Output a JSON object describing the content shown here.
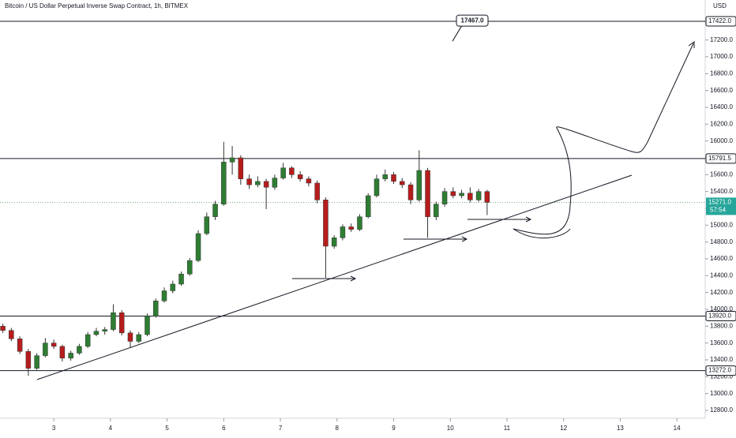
{
  "chart_data": {
    "type": "candlestick",
    "title": "Bitcoin / US Dollar Perpetual Inverse Swap Contract, 1h, BITMEX",
    "currency": "USD",
    "x": [
      2.1,
      2.25,
      2.4,
      2.55,
      2.7,
      2.85,
      3.0,
      3.15,
      3.3,
      3.45,
      3.6,
      3.75,
      3.9,
      4.05,
      4.2,
      4.35,
      4.5,
      4.65,
      4.8,
      4.95,
      5.1,
      5.25,
      5.4,
      5.55,
      5.7,
      5.85,
      6.0,
      6.15,
      6.3,
      6.45,
      6.6,
      6.75,
      6.9,
      7.05,
      7.2,
      7.35,
      7.5,
      7.65,
      7.8,
      7.95,
      8.1,
      8.25,
      8.4,
      8.55,
      8.7,
      8.85,
      9.0,
      9.15,
      9.3,
      9.45,
      9.6,
      9.75,
      9.9,
      10.05,
      10.2,
      10.35,
      10.5,
      10.65
    ],
    "open": [
      13800,
      13750,
      13650,
      13500,
      13300,
      13450,
      13600,
      13560,
      13420,
      13480,
      13560,
      13700,
      13740,
      13760,
      13960,
      13720,
      13620,
      13700,
      13920,
      14100,
      14220,
      14300,
      14420,
      14580,
      14900,
      15100,
      15250,
      15750,
      15800,
      15550,
      15480,
      15520,
      15450,
      15560,
      15680,
      15600,
      15550,
      15500,
      15300,
      14750,
      14850,
      14980,
      14950,
      15100,
      15350,
      15550,
      15600,
      15520,
      15480,
      15300,
      15650,
      15100,
      15250,
      15400,
      15350,
      15380,
      15300,
      15400
    ],
    "high": [
      13830,
      13780,
      13680,
      13530,
      13480,
      13660,
      13640,
      13580,
      13510,
      13590,
      13730,
      13780,
      13790,
      14060,
      13990,
      13750,
      13730,
      13950,
      14130,
      14260,
      14340,
      14450,
      14610,
      14940,
      15150,
      15290,
      15990,
      15940,
      15830,
      15600,
      15580,
      15550,
      15600,
      15740,
      15700,
      15640,
      15580,
      15530,
      15330,
      14880,
      15010,
      15020,
      15130,
      15380,
      15600,
      15660,
      15630,
      15560,
      15510,
      15890,
      15680,
      15280,
      15440,
      15450,
      15420,
      15450,
      15430,
      15420
    ],
    "low": [
      13720,
      13620,
      13470,
      13210,
      13280,
      13430,
      13530,
      13380,
      13390,
      13460,
      13540,
      13680,
      13700,
      13740,
      13690,
      13540,
      13600,
      13680,
      13900,
      14080,
      14190,
      14280,
      14400,
      14560,
      14880,
      15060,
      15230,
      15600,
      15480,
      15430,
      15450,
      15190,
      15420,
      15540,
      15560,
      15520,
      15460,
      15260,
      14375,
      14720,
      14820,
      14920,
      14930,
      15080,
      15330,
      15520,
      15490,
      15440,
      15250,
      15280,
      14850,
      15060,
      15220,
      15320,
      15320,
      15270,
      15280,
      15120
    ],
    "close": [
      13750,
      13650,
      13500,
      13300,
      13450,
      13600,
      13560,
      13420,
      13480,
      13560,
      13700,
      13740,
      13760,
      13960,
      13720,
      13620,
      13700,
      13920,
      14100,
      14220,
      14300,
      14420,
      14580,
      14900,
      15100,
      15250,
      15750,
      15800,
      15550,
      15480,
      15520,
      15450,
      15560,
      15680,
      15600,
      15550,
      15500,
      15300,
      14750,
      14850,
      14980,
      14950,
      15100,
      15350,
      15550,
      15600,
      15520,
      15480,
      15300,
      15650,
      15100,
      15250,
      15400,
      15350,
      15380,
      15300,
      15400,
      15271
    ],
    "up_color": "#2e7d32",
    "down_color": "#b71c1c",
    "xlim": [
      2.05,
      14.5
    ],
    "ylim": [
      12706,
      17675
    ],
    "xticks": [
      3,
      4,
      5,
      6,
      7,
      8,
      9,
      10,
      11,
      12,
      13,
      14
    ],
    "yticks": [
      {
        "value": 12800,
        "label": "12800.0"
      },
      {
        "value": 13000,
        "label": "13000.0"
      },
      {
        "value": 13200,
        "label": "13200.0"
      },
      {
        "value": 13400,
        "label": "13400.0"
      },
      {
        "value": 13600,
        "label": "13600.0"
      },
      {
        "value": 13800,
        "label": "13800.0"
      },
      {
        "value": 14000,
        "label": "14000.0"
      },
      {
        "value": 14200,
        "label": "14200.0"
      },
      {
        "value": 14400,
        "label": "14400.0"
      },
      {
        "value": 14600,
        "label": "14600.0"
      },
      {
        "value": 14800,
        "label": "14800.0"
      },
      {
        "value": 15000,
        "label": "15000.0"
      },
      {
        "value": 15200,
        "label": "15200.0"
      },
      {
        "value": 15400,
        "label": "15400.0"
      },
      {
        "value": 15600,
        "label": "15600.0"
      },
      {
        "value": 15800,
        "label": "15800.0"
      },
      {
        "value": 16000,
        "label": "16000.0"
      },
      {
        "value": 16200,
        "label": "16200.0"
      },
      {
        "value": 16400,
        "label": "16400.0"
      },
      {
        "value": 16600,
        "label": "16600.0"
      },
      {
        "value": 16800,
        "label": "16800.0"
      },
      {
        "value": 17000,
        "label": "17000.0"
      },
      {
        "value": 17200,
        "label": "17200.0"
      }
    ],
    "levels": [
      {
        "value": 17422,
        "label": "17422.0"
      },
      {
        "value": 15791.5,
        "label": "15791.5"
      },
      {
        "value": 13920,
        "label": "13920.0"
      },
      {
        "value": 13272,
        "label": "13272.0"
      }
    ],
    "last_price": {
      "value": 15271,
      "label": "15271.0"
    },
    "countdown": "57:54",
    "callout": {
      "value": 17467,
      "label": "17467.0"
    }
  }
}
